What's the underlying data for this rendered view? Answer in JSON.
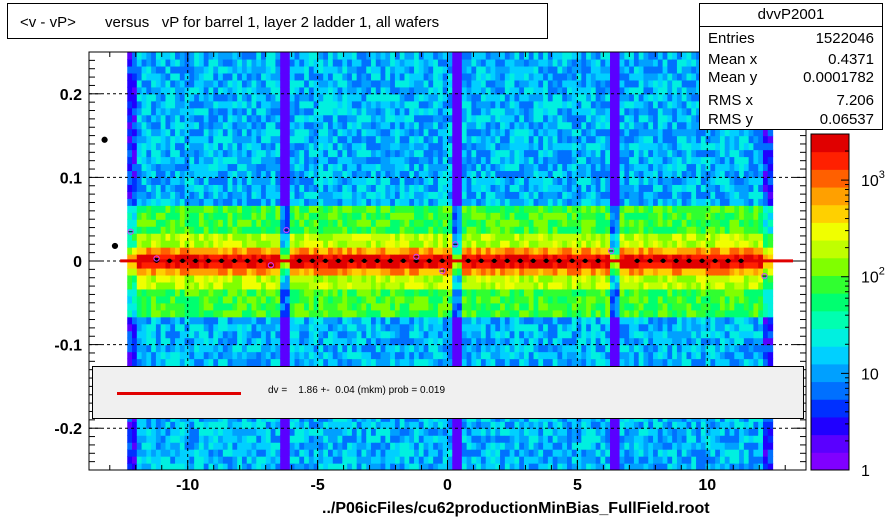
{
  "title": "<v - vP>       versus   vP for barrel 1, layer 2 ladder 1, all wafers",
  "stats": {
    "name": "dvvP2001",
    "rows": [
      {
        "label": "Entries",
        "value": "1522046"
      },
      {
        "label": "Mean x",
        "value": "0.4371"
      },
      {
        "label": "Mean y",
        "value": "0.0001782"
      },
      {
        "label": "RMS x",
        "value": "7.206"
      },
      {
        "label": "RMS y",
        "value": "0.06537"
      }
    ]
  },
  "fit_legend": "dv =    1.86 +-  0.04 (mkm) prob = 0.019",
  "footer": "../P06icFiles/cu62productionMinBias_FullField.root",
  "colors": {
    "fit_line": "#e00000",
    "palette": [
      "#8000ff",
      "#5a00ff",
      "#2000ff",
      "#0030ff",
      "#0070ff",
      "#00a0ff",
      "#00d0ff",
      "#00f0e0",
      "#00ffb0",
      "#00ff70",
      "#30ff30",
      "#80ff00",
      "#c0ff00",
      "#f0ff00",
      "#ffd000",
      "#ffa000",
      "#ff6000",
      "#ff2000",
      "#e00000"
    ]
  },
  "chart_data": {
    "type": "heatmap",
    "title": "<v - vP>       versus   vP for barrel 1, layer 2 ladder 1, all wafers",
    "xlabel": "",
    "ylabel": "",
    "xlim": [
      -13.8,
      13.8
    ],
    "ylim": [
      -0.25,
      0.25
    ],
    "x_ticks": [
      -10,
      -5,
      0,
      5,
      10
    ],
    "y_ticks": [
      -0.2,
      -0.1,
      0,
      0.1,
      0.2
    ],
    "z_scale": "log",
    "z_ticks": [
      {
        "label": "1",
        "value": 1
      },
      {
        "label": "10",
        "value": 10
      },
      {
        "label": "10",
        "sup": "2",
        "value": 100
      },
      {
        "label": "10",
        "sup": "3",
        "value": 1000
      }
    ],
    "grid": true,
    "fit": {
      "intercept_mkm": 1.86,
      "error_mkm": 0.04,
      "prob": 0.019
    },
    "profile_points": [
      {
        "x": -13.2,
        "y": 0.145
      },
      {
        "x": -12.8,
        "y": 0.018
      },
      {
        "x": -12.2,
        "y": 0.035
      },
      {
        "x": -11.2,
        "y": 0.003
      },
      {
        "x": -6.2,
        "y": 0.037
      },
      {
        "x": -6.8,
        "y": -0.005
      },
      {
        "x": -1.2,
        "y": 0.005
      },
      {
        "x": -0.2,
        "y": -0.012
      },
      {
        "x": 0.3,
        "y": 0.02
      },
      {
        "x": 6.3,
        "y": 0.012
      },
      {
        "x": 12.2,
        "y": -0.018
      }
    ]
  }
}
